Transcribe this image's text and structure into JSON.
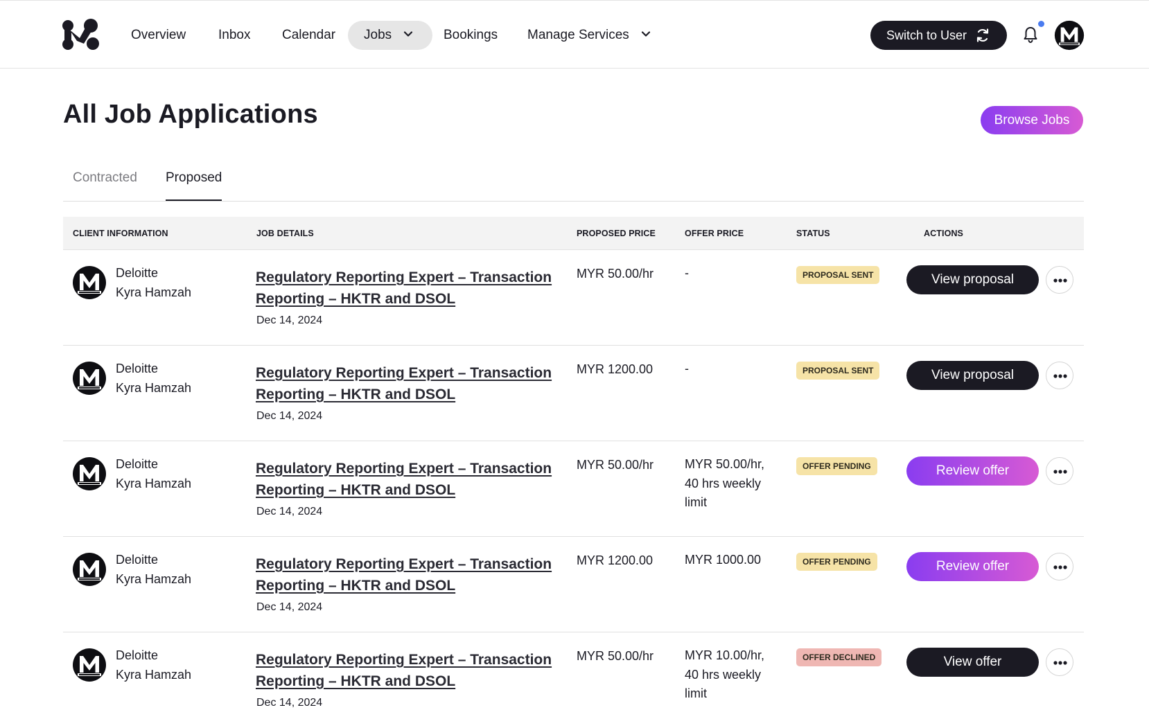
{
  "nav": {
    "logo_icon": "mereka-logo-icon",
    "items": [
      {
        "label": "Overview"
      },
      {
        "label": "Inbox"
      },
      {
        "label": "Calendar"
      },
      {
        "label": "Jobs",
        "active": true,
        "has_dropdown": true
      },
      {
        "label": "Bookings"
      },
      {
        "label": "Manage Services",
        "has_dropdown": true
      }
    ],
    "switch_label": "Switch to User",
    "switch_icon": "sync-icon",
    "bell_icon": "bell-icon",
    "notification_dot_color": "#4a7cf0",
    "avatar_icon": "mereka-avatar-icon"
  },
  "page": {
    "title": "All Job Applications",
    "browse_label": "Browse Jobs"
  },
  "tabs": [
    {
      "label": "Contracted",
      "active": false
    },
    {
      "label": "Proposed",
      "active": true
    }
  ],
  "table": {
    "headers": {
      "client": "CLIENT INFORMATION",
      "job": "JOB DETAILS",
      "proposed": "PROPOSED PRICE",
      "offer": "OFFER PRICE",
      "status": "STATUS",
      "actions": "ACTIONS"
    },
    "rows": [
      {
        "company": "Deloitte",
        "person": "Kyra Hamzah",
        "job_title": "Regulatory Reporting Expert – Transaction Reporting – HKTR and DSOL",
        "date": "Dec 14, 2024",
        "proposed_price": "MYR 50.00/hr",
        "offer_price": "-",
        "status": "PROPOSAL SENT",
        "status_color": "#f6e3a7",
        "action_label": "View proposal",
        "action_style": "dark"
      },
      {
        "company": "Deloitte",
        "person": "Kyra Hamzah",
        "job_title": "Regulatory Reporting Expert – Transaction Reporting – HKTR and DSOL",
        "date": "Dec 14, 2024",
        "proposed_price": "MYR 1200.00",
        "offer_price": "-",
        "status": "PROPOSAL SENT",
        "status_color": "#f6e3a7",
        "action_label": "View proposal",
        "action_style": "dark"
      },
      {
        "company": "Deloitte",
        "person": "Kyra Hamzah",
        "job_title": "Regulatory Reporting Expert – Transaction Reporting – HKTR and DSOL",
        "date": "Dec 14, 2024",
        "proposed_price": "MYR 50.00/hr",
        "offer_price": "MYR 50.00/hr, 40 hrs weekly limit",
        "status": "OFFER PENDING",
        "status_color": "#f6e3a7",
        "action_label": "Review offer",
        "action_style": "purple"
      },
      {
        "company": "Deloitte",
        "person": "Kyra Hamzah",
        "job_title": "Regulatory Reporting Expert – Transaction Reporting – HKTR and DSOL",
        "date": "Dec 14, 2024",
        "proposed_price": "MYR 1200.00",
        "offer_price": "MYR 1000.00",
        "status": "OFFER PENDING",
        "status_color": "#f6e3a7",
        "action_label": "Review offer",
        "action_style": "purple"
      },
      {
        "company": "Deloitte",
        "person": "Kyra Hamzah",
        "job_title": "Regulatory Reporting Expert – Transaction Reporting – HKTR and DSOL",
        "date": "Dec 14, 2024",
        "proposed_price": "MYR 50.00/hr",
        "offer_price": "MYR 10.00/hr, 40 hrs weekly limit",
        "status": "OFFER DECLINED",
        "status_color": "#efb7b3",
        "action_label": "View offer",
        "action_style": "dark"
      }
    ]
  },
  "colors": {
    "dark": "#1b1a23",
    "purple_start": "#8a3df0",
    "purple_end": "#d75ad4"
  }
}
